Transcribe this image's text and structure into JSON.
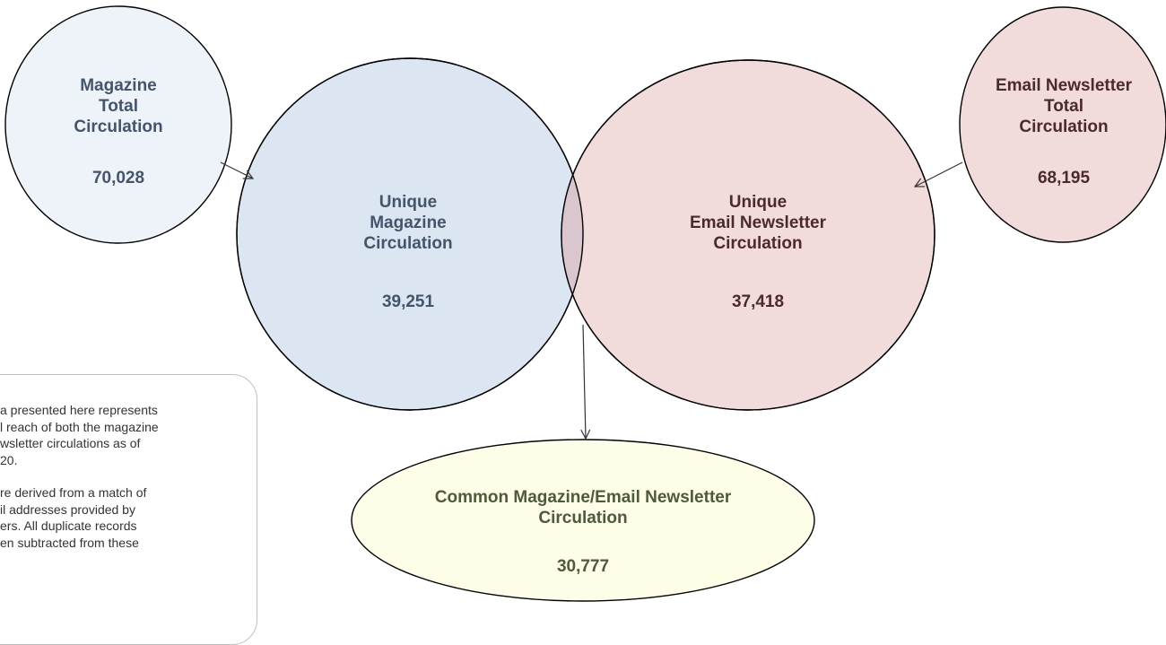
{
  "magazine_total": {
    "label_lines": [
      "Magazine",
      "Total",
      "Circulation"
    ],
    "value": "70,028",
    "fill": "#eef3fa"
  },
  "unique_magazine": {
    "label_lines": [
      "Unique",
      "Magazine",
      "Circulation"
    ],
    "value": "39,251",
    "fill": "#dce6f2"
  },
  "unique_email": {
    "label_lines": [
      "Unique",
      "Email Newsletter",
      "Circulation"
    ],
    "value": "37,418",
    "fill": "#f2dcdb"
  },
  "email_total": {
    "label_lines": [
      "Email Newsletter",
      "Total",
      "Circulation"
    ],
    "value": "68,195",
    "fill": "#f2dcdb"
  },
  "common": {
    "label_lines": [
      "Common Magazine/Email Newsletter",
      "Circulation"
    ],
    "value": "30,777",
    "fill": "#fdfde8"
  },
  "overlap_fill": "#d9c6cf",
  "note": {
    "paragraph_1": "a presented here represents\nl reach of both the magazine\nwsletter circulations as of\n20.",
    "paragraph_2": "re derived from a match of\nil addresses provided by\ners. All duplicate records\nen subtracted from these"
  }
}
